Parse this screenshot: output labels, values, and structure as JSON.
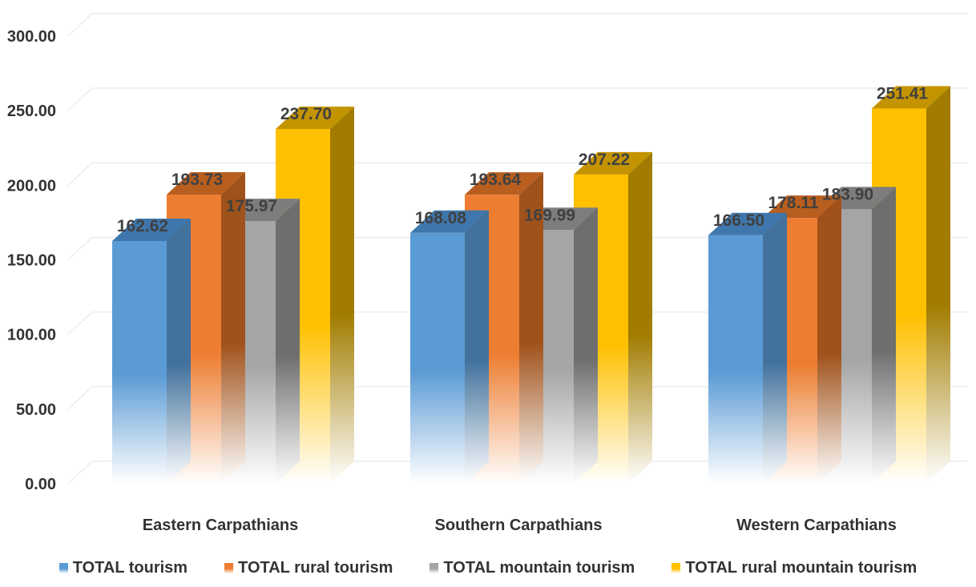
{
  "chart_data": {
    "type": "bar",
    "categories": [
      "Eastern Carpathians",
      "Southern Carpathians",
      "Western Carpathians"
    ],
    "series": [
      {
        "name": "TOTAL tourism",
        "values": [
          162.62,
          168.08,
          166.5
        ],
        "color": "#5B9BD5",
        "top_color": "#3F77AC",
        "side_color": "#41719C"
      },
      {
        "name": "TOTAL rural tourism",
        "values": [
          193.73,
          193.64,
          178.11
        ],
        "color": "#ED7D31",
        "top_color": "#B85E1E",
        "side_color": "#A0521B"
      },
      {
        "name": "TOTAL mountain tourism",
        "values": [
          175.97,
          169.99,
          183.9
        ],
        "color": "#A5A5A5",
        "top_color": "#7D7D7D",
        "side_color": "#6E6E6E"
      },
      {
        "name": "TOTAL rural mountain tourism",
        "values": [
          237.7,
          207.22,
          251.41
        ],
        "color": "#FFC000",
        "top_color": "#C49400",
        "side_color": "#A17C00"
      }
    ],
    "data_labels": [
      [
        "162.62",
        "168.08",
        "166.50"
      ],
      [
        "193.73",
        "193.64",
        "178.11"
      ],
      [
        "175.97",
        "169.99",
        "183.90"
      ],
      [
        "237.70",
        "207.22",
        "251.41"
      ]
    ],
    "y_ticks": [
      "0.00",
      "50.00",
      "100.00",
      "150.00",
      "200.00",
      "250.00",
      "300.00"
    ],
    "ylim": [
      0,
      300
    ],
    "grid": true,
    "legend_position": "bottom",
    "title": "",
    "xlabel": "",
    "ylabel": ""
  }
}
